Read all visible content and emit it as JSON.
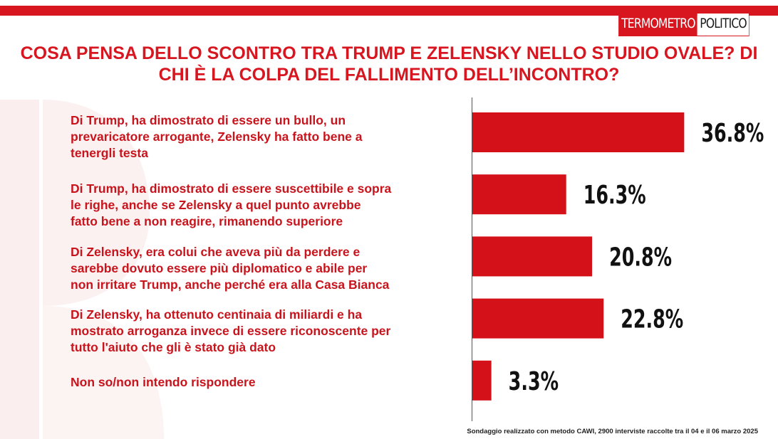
{
  "logo": {
    "left_text": "Termometro",
    "right_text": "Politico"
  },
  "title": "COSA PENSA DELLO SCONTRO TRA TRUMP E ZELENSKY NELLO STUDIO OVALE? DI CHI È LA COLPA DEL FALLIMENTO DELL’INCONTRO?",
  "footer": "Sondaggio realizzato con metodo CAWI, 2900 interviste raccolte tra il 04 e il 06  marzo 2025",
  "colors": {
    "accent": "#d81620",
    "bar": "#d41119",
    "label": "#c8141c",
    "value_text": "#111111"
  },
  "chart_data": {
    "type": "bar",
    "orientation": "horizontal",
    "categories": [
      "Di Trump, ha dimostrato di essere un bullo, un\nprevaricatore arrogante, Zelensky ha fatto bene a\ntenergli testa",
      "Di Trump, ha dimostrato di essere suscettibile e sopra\nle righe, anche se Zelensky a quel punto avrebbe\nfatto bene a non reagire, rimanendo superiore",
      "Di Zelensky, era colui che aveva più da perdere e\nsarebbe dovuto essere più diplomatico e abile per\nnon irritare Trump, anche perché era alla Casa Bianca",
      "Di Zelensky, ha ottenuto centinaia di miliardi e ha\nmostrato arroganza invece di essere riconoscente per\ntutto l'aiuto che gli è stato già  dato",
      "Non so/non intendo rispondere"
    ],
    "values": [
      36.8,
      16.3,
      20.8,
      22.8,
      3.3
    ],
    "value_labels": [
      "36.8%",
      "16.3%",
      "20.8%",
      "22.8%",
      "3.3%"
    ],
    "xlim": [
      0,
      50
    ],
    "grid": false,
    "legend": "none"
  }
}
